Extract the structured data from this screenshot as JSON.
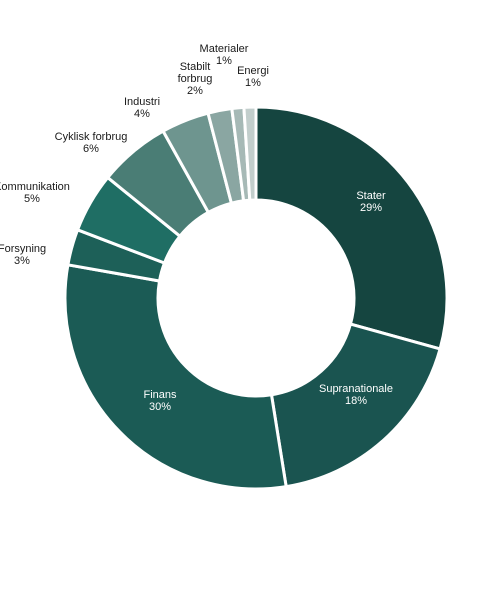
{
  "chart_data": {
    "type": "pie",
    "donut": true,
    "title": "",
    "categories": [
      "Stater",
      "Supranationale",
      "Finans",
      "Forsyning",
      "Kommunikation",
      "Cyklisk forbrug",
      "Industri",
      "Stabilt forbrug",
      "Materialer",
      "Energi"
    ],
    "values": [
      29,
      18,
      30,
      3,
      5,
      6,
      4,
      2,
      1,
      1
    ],
    "labels": [
      {
        "lines": [
          "Stater"
        ],
        "pct": "29%"
      },
      {
        "lines": [
          "Supranationale"
        ],
        "pct": "18%"
      },
      {
        "lines": [
          "Finans"
        ],
        "pct": "30%"
      },
      {
        "lines": [
          "Forsyning"
        ],
        "pct": "3%"
      },
      {
        "lines": [
          "Kommunikation"
        ],
        "pct": "5%"
      },
      {
        "lines": [
          "Cyklisk forbrug"
        ],
        "pct": "6%"
      },
      {
        "lines": [
          "Industri"
        ],
        "pct": "4%"
      },
      {
        "lines": [
          "Stabilt",
          "forbrug"
        ],
        "pct": "2%"
      },
      {
        "lines": [
          "Materialer"
        ],
        "pct": "1%"
      },
      {
        "lines": [
          "Energi"
        ],
        "pct": "1%"
      }
    ],
    "colors": [
      "#154540",
      "#1a5450",
      "#1b5b55",
      "#1d6058",
      "#1f6e64",
      "#4a7d75",
      "#6e958f",
      "#8aa6a2",
      "#a6b9b6",
      "#c2cecc"
    ],
    "label_colors": [
      "#ffffff",
      "#ffffff",
      "#ffffff",
      "#1a1a1a",
      "#1a1a1a",
      "#1a1a1a",
      "#1a1a1a",
      "#1a1a1a",
      "#1a1a1a",
      "#1a1a1a"
    ],
    "legend": "none",
    "start": "12 o'clock",
    "direction": "clockwise"
  }
}
